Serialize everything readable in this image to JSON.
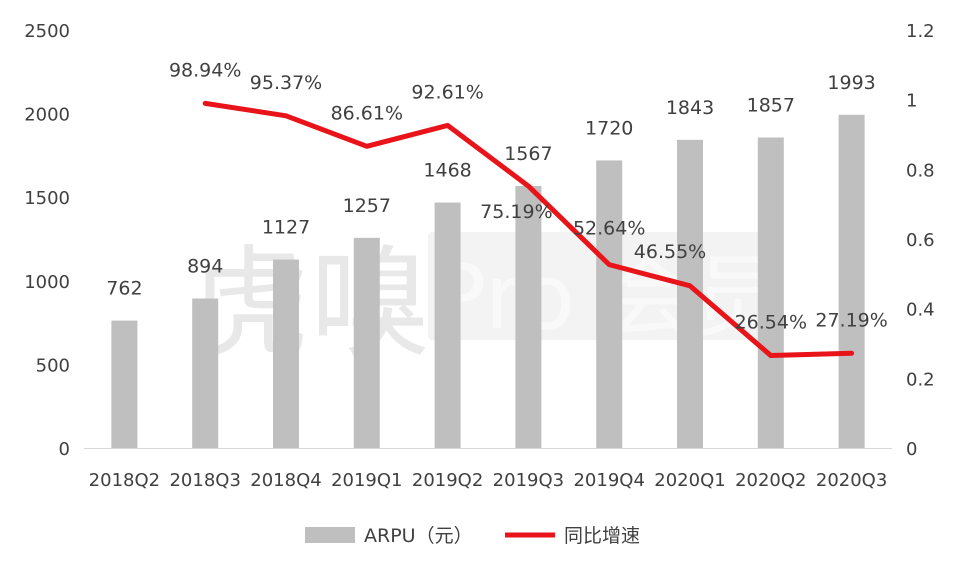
{
  "chart_data": {
    "type": "bar",
    "categories": [
      "2018Q2",
      "2018Q3",
      "2018Q4",
      "2019Q1",
      "2019Q2",
      "2019Q3",
      "2019Q4",
      "2020Q1",
      "2020Q2",
      "2020Q3"
    ],
    "series": [
      {
        "name": "ARPU（元）",
        "type": "bar",
        "axis": "left",
        "values": [
          762,
          894,
          1127,
          1257,
          1468,
          1567,
          1720,
          1843,
          1857,
          1993
        ],
        "labels": [
          "762",
          "894",
          "1127",
          "1257",
          "1468",
          "1567",
          "1720",
          "1843",
          "1857",
          "1993"
        ]
      },
      {
        "name": "同比增速",
        "type": "line",
        "axis": "right",
        "values": [
          null,
          0.9894,
          0.9537,
          0.8661,
          0.9261,
          0.7519,
          0.5264,
          0.4655,
          0.2654,
          0.2719
        ],
        "labels": [
          "",
          "98.94%",
          "95.37%",
          "86.61%",
          "92.61%",
          "75.19%",
          "52.64%",
          "46.55%",
          "26.54%",
          "27.19%"
        ]
      }
    ],
    "y_left": {
      "min": 0,
      "max": 2500,
      "ticks": [
        "0",
        "500",
        "1000",
        "1500",
        "2000",
        "2500"
      ]
    },
    "y_right": {
      "min": 0,
      "max": 1.2,
      "ticks": [
        "0",
        "0.2",
        "0.4",
        "0.6",
        "0.8",
        "1",
        "1.2"
      ]
    },
    "grid": false,
    "legend_position": "bottom",
    "colors": {
      "bar": "#bfbfbf",
      "line": "#e8141a",
      "text": "#404040"
    },
    "watermark": {
      "text": "虎嗅 Pro 会员"
    }
  }
}
